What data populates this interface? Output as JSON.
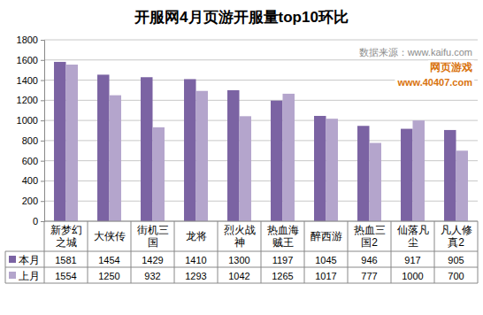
{
  "chart_data": {
    "type": "bar",
    "title": "开服网4月页游开服量top10环比",
    "categories": [
      "新梦幻之城",
      "大侠传",
      "街机三国",
      "龙将",
      "烈火战神",
      "热血海贼王",
      "醉西游",
      "热血三国2",
      "仙落凡尘",
      "凡人修真2"
    ],
    "series": [
      {
        "name": "本月",
        "color": "#7b63a3",
        "values": [
          1581,
          1454,
          1429,
          1410,
          1300,
          1197,
          1045,
          946,
          917,
          905
        ]
      },
      {
        "name": "上月",
        "color": "#b4a5cc",
        "values": [
          1554,
          1250,
          932,
          1293,
          1042,
          1265,
          1017,
          777,
          1000,
          700
        ]
      }
    ],
    "ylim": [
      0,
      1800
    ],
    "yticks": [
      0,
      200,
      400,
      600,
      800,
      1000,
      1200,
      1400,
      1600,
      1800
    ],
    "grid": true,
    "legend": "bottom",
    "annotations": [
      "数据来源：www.kaifu.com",
      "网页游戏",
      "www.40407.com"
    ]
  }
}
